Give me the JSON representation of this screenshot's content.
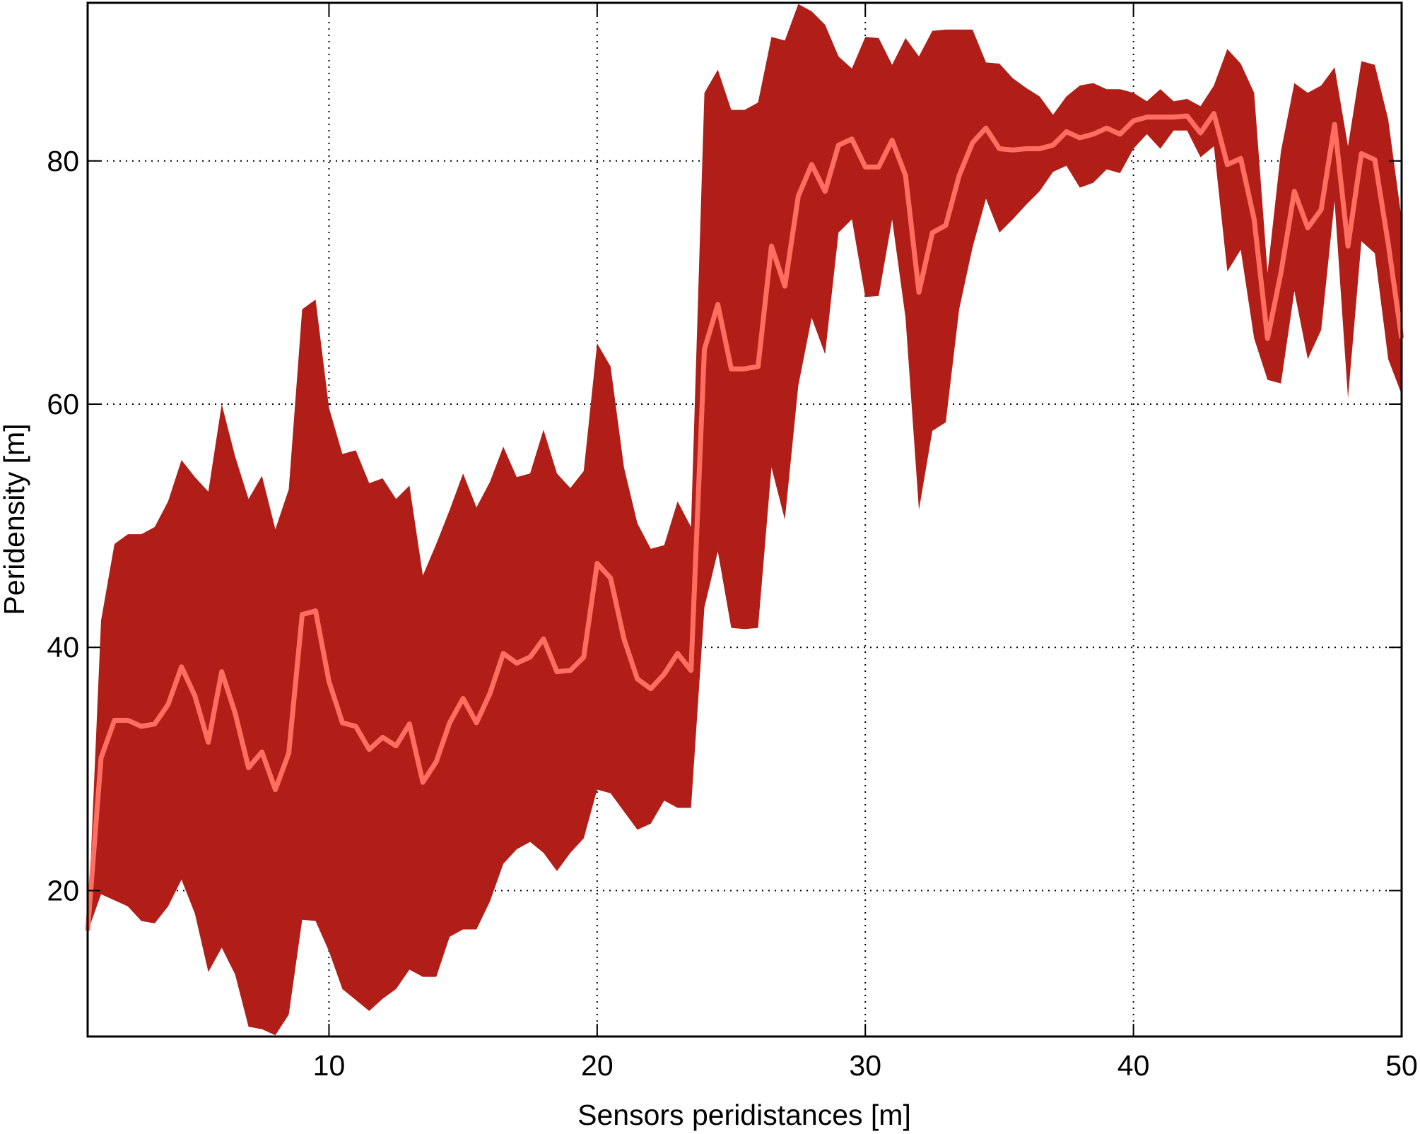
{
  "chart_data": {
    "type": "line",
    "xlabel": "Sensors peridistances [m]",
    "ylabel": "Peridensity [m]",
    "x": [
      1,
      1.5,
      2,
      2.5,
      3,
      3.5,
      4,
      4.5,
      5,
      5.5,
      6,
      6.5,
      7,
      7.5,
      8,
      8.5,
      9,
      9.5,
      10,
      10.5,
      11,
      11.5,
      12,
      12.5,
      13,
      13.5,
      14,
      14.5,
      15,
      15.5,
      16,
      16.5,
      17,
      17.5,
      18,
      18.5,
      19,
      19.5,
      20,
      20.5,
      21,
      21.5,
      22,
      22.5,
      23,
      23.5,
      24,
      24.5,
      25,
      25.5,
      26,
      26.5,
      27,
      27.5,
      28,
      28.5,
      29,
      29.5,
      30,
      30.5,
      31,
      31.5,
      32,
      32.5,
      33,
      33.5,
      34,
      34.5,
      35,
      35.5,
      36,
      36.5,
      37,
      37.5,
      38,
      38.5,
      39,
      39.5,
      40,
      40.5,
      41,
      41.5,
      42,
      42.5,
      43,
      43.5,
      44,
      44.5,
      45,
      45.5,
      46,
      46.5,
      47,
      47.5,
      48,
      48.5,
      49,
      49.5,
      50
    ],
    "values": [
      16.7,
      30.9,
      34,
      34,
      33.5,
      33.7,
      35.3,
      38.4,
      36,
      32.2,
      38,
      34.6,
      30.1,
      31.4,
      28.3,
      31.3,
      42.7,
      43,
      37.2,
      33.8,
      33.5,
      31.6,
      32.6,
      31.9,
      33.7,
      28.9,
      30.6,
      33.8,
      35.8,
      33.8,
      36.2,
      39.5,
      38.7,
      39.2,
      40.7,
      38,
      38.1,
      39.2,
      46.9,
      45.7,
      40.7,
      37.4,
      36.6,
      37.8,
      39.5,
      38.1,
      64.5,
      68.2,
      62.9,
      62.9,
      63.1,
      73,
      69.7,
      77.1,
      79.7,
      77.5,
      81.3,
      81.8,
      79.5,
      79.5,
      81.7,
      78.8,
      69.2,
      74.1,
      74.7,
      78.8,
      81.5,
      82.7,
      81,
      80.9,
      81,
      81,
      81.3,
      82.4,
      81.9,
      82.2,
      82.7,
      82.2,
      83.3,
      83.6,
      83.6,
      83.6,
      83.7,
      82.3,
      83.9,
      79.7,
      80.2,
      75.2,
      65.4,
      70.8,
      77.5,
      74.5,
      76,
      83,
      73,
      80.6,
      80.1,
      73.2,
      65.4
    ],
    "band_upper": [
      16.6,
      42.2,
      48.5,
      49.3,
      49.3,
      49.9,
      52,
      55.4,
      54,
      52.8,
      60,
      55.7,
      52.2,
      54.1,
      49.7,
      53,
      67.8,
      68.6,
      59.7,
      55.9,
      56.2,
      53.5,
      53.9,
      52.2,
      53.3,
      45.9,
      48.5,
      51.3,
      54.3,
      51.5,
      53.6,
      56.5,
      54,
      54.3,
      57.9,
      54.3,
      53.1,
      54.5,
      65,
      63.1,
      54.8,
      50.2,
      48.1,
      48.4,
      52,
      49.9,
      85.6,
      87.5,
      84.2,
      84.2,
      84.8,
      90.2,
      89.9,
      92.9,
      92.3,
      91.2,
      88.6,
      87.6,
      90.2,
      90.1,
      87.9,
      90.1,
      88.6,
      90.7,
      90.8,
      90.8,
      90.8,
      88.1,
      88,
      86.8,
      86,
      85.3,
      83.8,
      85.3,
      86.2,
      86.4,
      85.9,
      85.9,
      85.6,
      84.9,
      85.9,
      84.9,
      85.1,
      84.5,
      86.2,
      89.2,
      88,
      85.6,
      70.8,
      80.8,
      86.4,
      85.6,
      86.2,
      87.7,
      81.2,
      88.2,
      87.9,
      83.4,
      75.2
    ],
    "band_lower": [
      16.6,
      19.7,
      19.2,
      18.7,
      17.5,
      17.3,
      18.7,
      20.9,
      18.1,
      13.3,
      15.3,
      13.1,
      8.8,
      8.6,
      8.1,
      9.8,
      17.6,
      17.5,
      15,
      11.9,
      11,
      10.1,
      11.1,
      11.9,
      13.5,
      12.9,
      12.9,
      16.2,
      16.8,
      16.8,
      19.1,
      22.2,
      23.4,
      24,
      23.1,
      21.6,
      23.1,
      24.3,
      28.3,
      28,
      26.5,
      25,
      25.5,
      27.4,
      26.8,
      26.8,
      43.3,
      47.9,
      41.6,
      41.5,
      41.6,
      54.8,
      50.5,
      61.5,
      67.1,
      64.1,
      74.1,
      75.2,
      68.8,
      68.9,
      75.2,
      67.1,
      51.3,
      57.8,
      58.5,
      67.8,
      72.9,
      76.9,
      74.1,
      75.2,
      76.4,
      77.5,
      79.1,
      79.6,
      77.8,
      78.2,
      79.3,
      79,
      81,
      82.2,
      81,
      82.5,
      82.5,
      80.3,
      81.2,
      70.9,
      72.7,
      65.4,
      62,
      61.7,
      69.3,
      63.7,
      66.1,
      76.7,
      60.5,
      73.4,
      72.4,
      63.7,
      60.8
    ],
    "line_color": "#ff6f61",
    "band_color": "#b01e17",
    "xlim": [
      1,
      50
    ],
    "ylim": [
      8,
      93
    ],
    "xticks": [
      10,
      20,
      30,
      40,
      50
    ],
    "yticks": [
      20,
      40,
      60,
      80
    ],
    "grid": true
  }
}
